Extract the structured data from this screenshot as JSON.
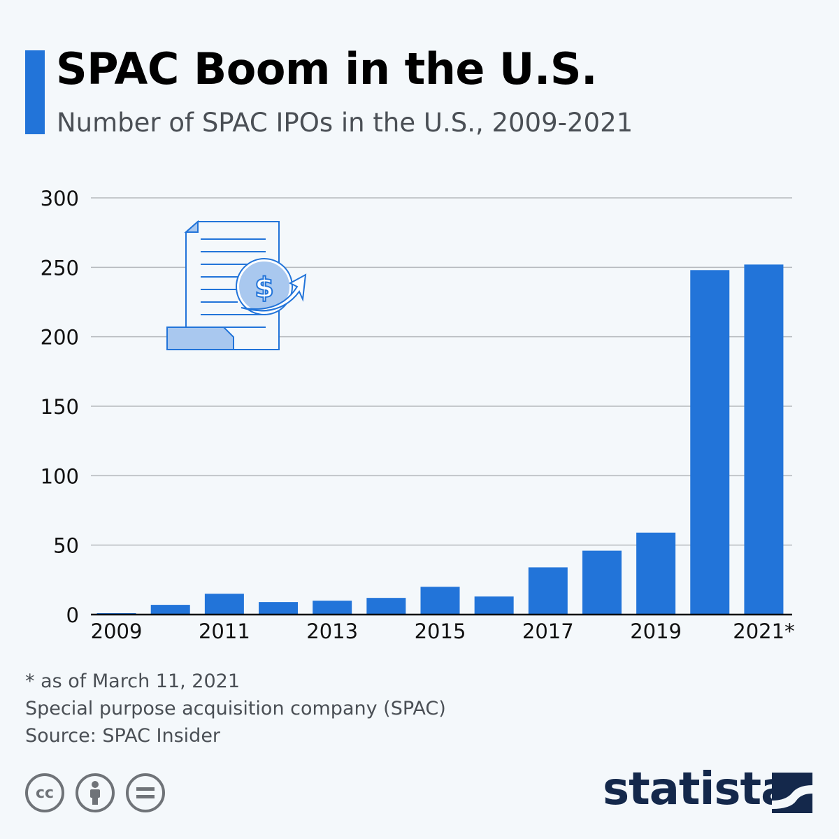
{
  "header": {
    "title": "SPAC Boom in the U.S.",
    "subtitle": "Number of SPAC IPOs in the U.S., 2009-2021"
  },
  "chart_data": {
    "type": "bar",
    "categories": [
      "2009",
      "2010",
      "2011",
      "2012",
      "2013",
      "2014",
      "2015",
      "2016",
      "2017",
      "2018",
      "2019",
      "2020",
      "2021*"
    ],
    "values": [
      1,
      7,
      15,
      9,
      10,
      12,
      20,
      13,
      34,
      46,
      59,
      248,
      252
    ],
    "xtick_labels": [
      "2009",
      "2011",
      "2013",
      "2015",
      "2017",
      "2019",
      "2021*"
    ],
    "yticks": [
      0,
      50,
      100,
      150,
      200,
      250,
      300
    ],
    "ylim": [
      0,
      300
    ],
    "grid": true,
    "bar_color": "#2274d9"
  },
  "footer": {
    "note1": "* as of March 11, 2021",
    "note2": "Special purpose acquisition company (SPAC)",
    "source": "Source: SPAC Insider",
    "license_icons": [
      "cc-icon",
      "attribution-icon",
      "no-derivatives-icon"
    ],
    "cc_label": "cc",
    "brand": "statista"
  }
}
